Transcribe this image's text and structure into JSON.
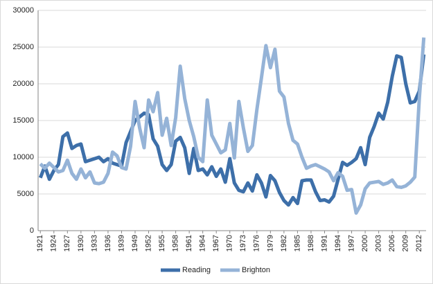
{
  "chart_data": {
    "type": "line",
    "categories": [
      "1921",
      null,
      null,
      "1924",
      null,
      null,
      "1927",
      null,
      null,
      "1930",
      null,
      null,
      "1933",
      null,
      null,
      "1936",
      null,
      null,
      "1939",
      null,
      null,
      "1949",
      null,
      null,
      "1952",
      null,
      null,
      "1955",
      null,
      null,
      "1958",
      null,
      null,
      "1961",
      null,
      null,
      "1964",
      null,
      null,
      "1967",
      null,
      null,
      "1970",
      null,
      null,
      "1973",
      null,
      null,
      "1976",
      null,
      null,
      "1979",
      null,
      null,
      "1982",
      null,
      null,
      "1985",
      null,
      null,
      "1988",
      null,
      null,
      "1991",
      null,
      null,
      "1994",
      null,
      null,
      "1997",
      null,
      null,
      "2000",
      null,
      null,
      "2003",
      null,
      null,
      "2006",
      null,
      null,
      "2009",
      null,
      null,
      "2012",
      null
    ],
    "series": [
      {
        "name": "Reading",
        "color": "#3d6fa9",
        "values": [
          7200,
          8800,
          7000,
          8200,
          9000,
          12800,
          13300,
          11200,
          11600,
          11800,
          9400,
          9600,
          9800,
          10000,
          9400,
          9800,
          9200,
          9000,
          8800,
          12000,
          13500,
          15000,
          15500,
          16000,
          15800,
          12500,
          11500,
          9000,
          8200,
          9000,
          12200,
          12700,
          11300,
          7800,
          11200,
          8200,
          8400,
          7600,
          8700,
          7400,
          8400,
          6600,
          9800,
          6500,
          5500,
          5300,
          6500,
          5400,
          7600,
          6500,
          4600,
          7500,
          6800,
          5200,
          4100,
          3500,
          4500,
          3700,
          6800,
          6900,
          6900,
          5300,
          4100,
          4200,
          3900,
          4700,
          7000,
          9300,
          8900,
          9300,
          9800,
          11300,
          9000,
          12700,
          14200,
          16000,
          15200,
          17500,
          21000,
          23800,
          23600,
          20000,
          17400,
          17600,
          19000,
          24000
        ]
      },
      {
        "name": "Brighton",
        "color": "#95b3d7",
        "values": [
          9100,
          8500,
          9200,
          8600,
          8000,
          8200,
          9600,
          7800,
          7000,
          8400,
          7200,
          8000,
          6500,
          6400,
          6600,
          7800,
          10700,
          10200,
          8600,
          8400,
          11500,
          17600,
          14000,
          11300,
          17800,
          16200,
          18800,
          13000,
          15300,
          11600,
          15400,
          22400,
          18000,
          15000,
          12800,
          10000,
          9400,
          17800,
          13000,
          11800,
          10600,
          11000,
          14600,
          9900,
          17600,
          14000,
          10800,
          11600,
          16500,
          20800,
          25200,
          22200,
          24700,
          19000,
          18200,
          14600,
          12300,
          11800,
          10000,
          8500,
          8800,
          9000,
          8700,
          8400,
          8000,
          6800,
          7900,
          7400,
          5500,
          5600,
          2400,
          3500,
          5700,
          6500,
          6600,
          6700,
          6300,
          6500,
          6900,
          6000,
          5900,
          6100,
          6600,
          7300,
          18000,
          26300
        ]
      }
    ],
    "ylim": [
      0,
      30000
    ],
    "yticks": [
      0,
      5000,
      10000,
      15000,
      20000,
      25000,
      30000
    ],
    "grid": true,
    "legend": "bottom"
  }
}
